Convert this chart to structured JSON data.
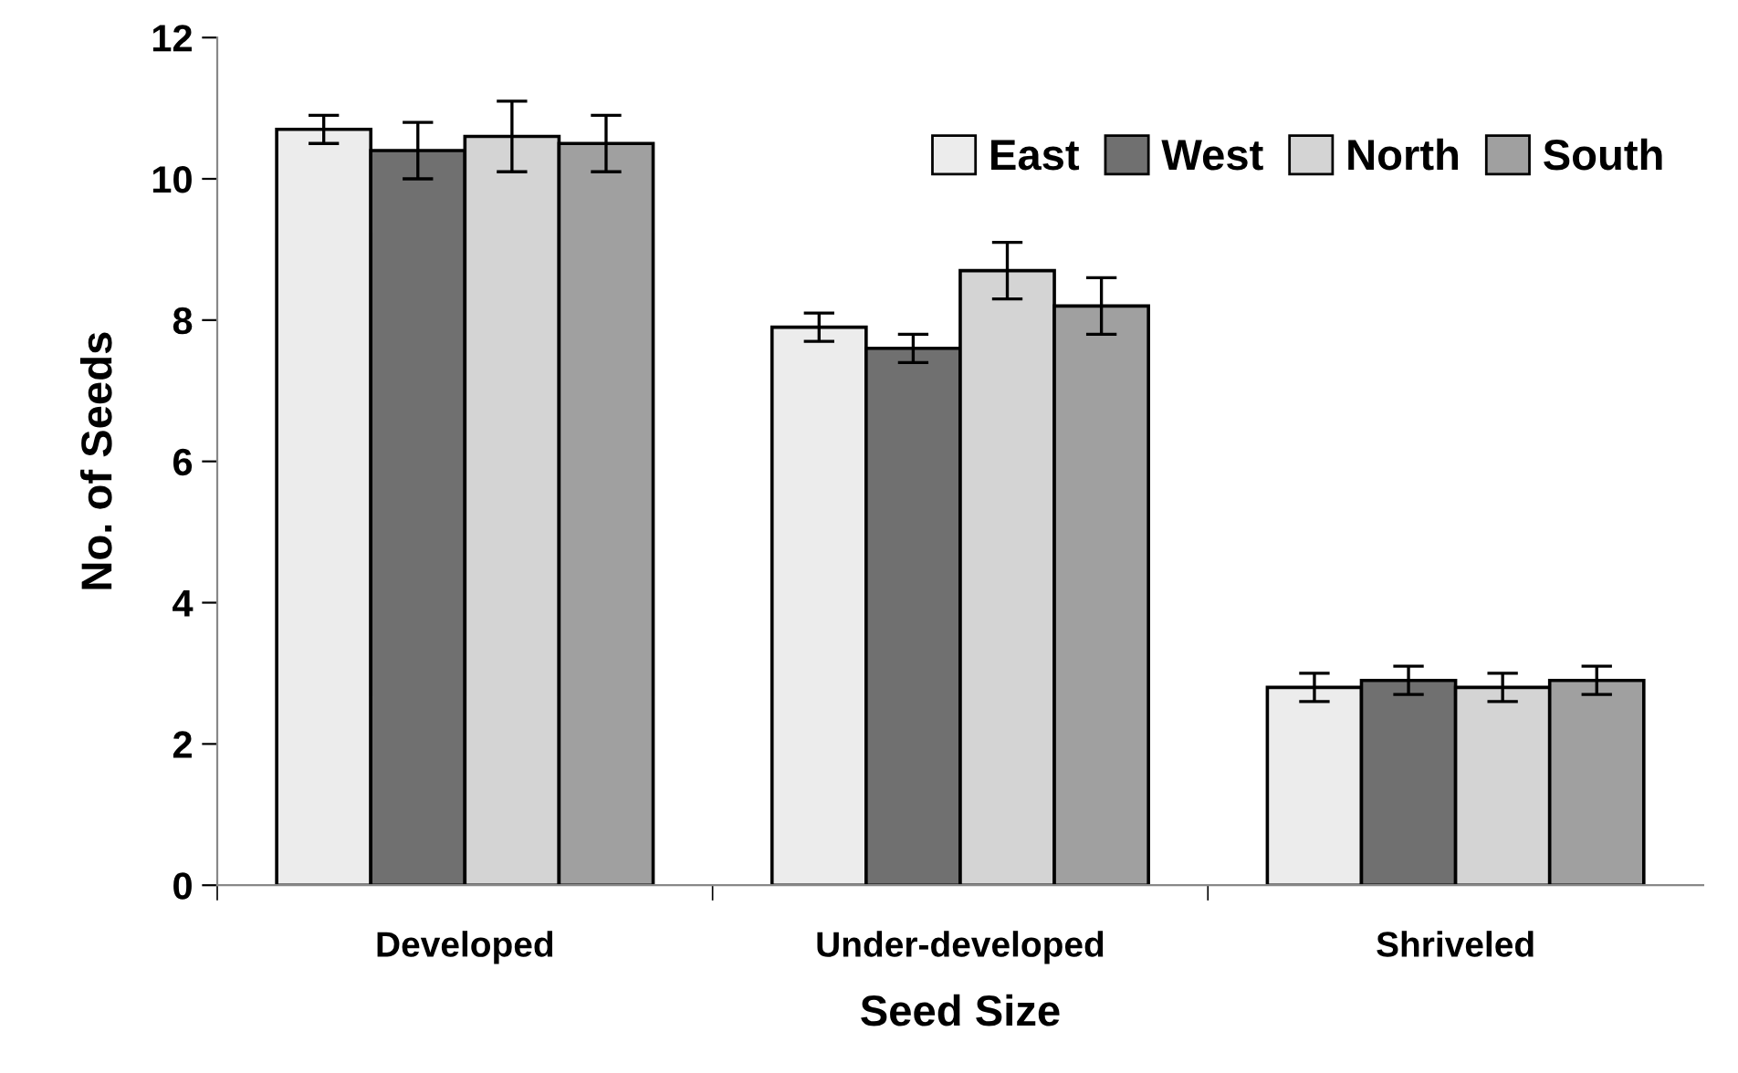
{
  "chart_data": {
    "type": "bar",
    "xlabel": "Seed Size",
    "ylabel": "No. of Seeds",
    "categories": [
      "Developed",
      "Under-developed",
      "Shriveled"
    ],
    "series": [
      {
        "name": "East",
        "color": "#ececec",
        "values": [
          10.7,
          7.9,
          2.8
        ],
        "errors": [
          0.2,
          0.2,
          0.2
        ]
      },
      {
        "name": "West",
        "color": "#707070",
        "values": [
          10.4,
          7.6,
          2.9
        ],
        "errors": [
          0.4,
          0.2,
          0.2
        ]
      },
      {
        "name": "North",
        "color": "#d4d4d4",
        "values": [
          10.6,
          8.7,
          2.8
        ],
        "errors": [
          0.5,
          0.4,
          0.2
        ]
      },
      {
        "name": "South",
        "color": "#a0a0a0",
        "values": [
          10.5,
          8.2,
          2.9
        ],
        "errors": [
          0.4,
          0.4,
          0.2
        ]
      }
    ],
    "ylim": [
      0,
      12
    ],
    "yticks": [
      0,
      2,
      4,
      6,
      8,
      10,
      12
    ],
    "grid": false,
    "legend": "top right"
  }
}
